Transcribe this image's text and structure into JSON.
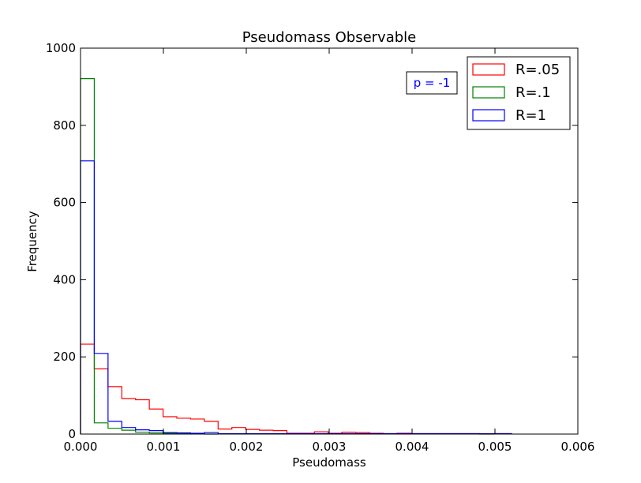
{
  "chart_data": {
    "type": "histogram-step",
    "title": "Pseudomass Observable",
    "xlabel": "Pseudomass",
    "ylabel": "Frequency",
    "xlim": [
      0,
      0.006
    ],
    "ylim": [
      0,
      1000
    ],
    "x_ticks": [
      0,
      0.001,
      0.002,
      0.003,
      0.004,
      0.005,
      0.006
    ],
    "x_tick_labels": [
      "0.000",
      "0.001",
      "0.002",
      "0.003",
      "0.004",
      "0.005",
      "0.006"
    ],
    "y_ticks": [
      0,
      200,
      400,
      600,
      800,
      1000
    ],
    "y_tick_labels": [
      "0",
      "200",
      "400",
      "600",
      "800",
      "1000"
    ],
    "legend_position": "top-right",
    "annotation": {
      "text": "p = -1",
      "color": "#0000ff",
      "position": "upper-right-left-of-legend"
    },
    "series": [
      {
        "name": "R=.05",
        "color": "#ff0000",
        "edges": [
          0,
          0.000166,
          0.000332,
          0.000498,
          0.000664,
          0.00083,
          0.000996,
          0.001162,
          0.001328,
          0.001494,
          0.00166,
          0.001826,
          0.001992,
          0.002158,
          0.002324,
          0.00249,
          0.002656,
          0.002822,
          0.002988,
          0.003154,
          0.00332,
          0.003486,
          0.003652,
          0.003818,
          0.003984,
          0.00415,
          0.004316,
          0.004482,
          0.004648,
          0.004814,
          0.00498,
          0.005146,
          0.0052
        ],
        "values": [
          233,
          169,
          123,
          92,
          89,
          65,
          45,
          41,
          39,
          33,
          13,
          17,
          12,
          10,
          9,
          2,
          2,
          6,
          2,
          5,
          4,
          2,
          1,
          2,
          1,
          1,
          1,
          1,
          1,
          0,
          1,
          1
        ]
      },
      {
        "name": "R=.1",
        "color": "#008000",
        "edges": [
          0,
          0.000166,
          0.000332,
          0.000498,
          0.000664,
          0.00083,
          0.000996,
          0.001162,
          0.001328,
          0.001494,
          0.00166
        ],
        "values": [
          921,
          29,
          15,
          10,
          5,
          3,
          2,
          1,
          1,
          0
        ]
      },
      {
        "name": "R=1",
        "color": "#0000ff",
        "edges": [
          0,
          0.000166,
          0.000332,
          0.000498,
          0.000664,
          0.00083,
          0.000996,
          0.001162,
          0.001328,
          0.001494,
          0.00166,
          0.001992,
          0.002656,
          0.00332,
          0.003984,
          0.004648,
          0.0052
        ],
        "values": [
          708,
          209,
          33,
          17,
          11,
          9,
          4,
          3,
          2,
          4,
          1,
          1,
          1,
          1,
          1,
          1
        ]
      }
    ]
  }
}
